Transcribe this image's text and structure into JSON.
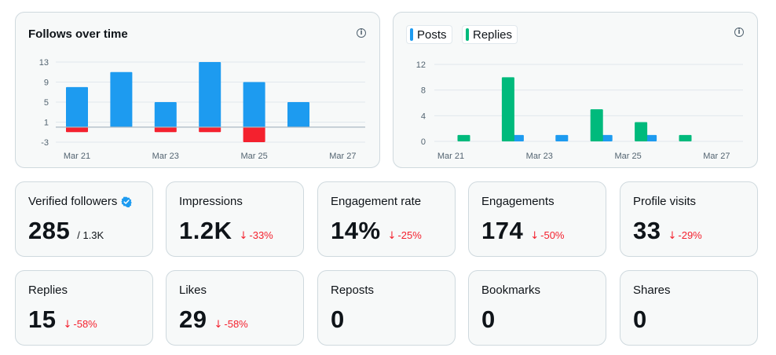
{
  "colors": {
    "posts": "#1d9bf0",
    "replies": "#00ba7c",
    "follows": "#1d9bf0",
    "unfollows": "#f4212e",
    "negative": "#f4212e",
    "gridline": "#e1e8ed",
    "baseline": "#aab8c2",
    "axis_text": "#536471"
  },
  "follows_chart": {
    "title": "Follows over time",
    "info_icon": "info-icon",
    "chart_data": {
      "type": "bar",
      "title": "Follows over time",
      "y_ticks": [
        "13",
        "9",
        "5",
        "1",
        "-3"
      ],
      "ylim": [
        -3,
        13
      ],
      "x_ticks": [
        "Mar 21",
        "Mar 23",
        "Mar 25",
        "Mar 27"
      ],
      "categories": [
        "Mar 21",
        "Mar 22",
        "Mar 23",
        "Mar 24",
        "Mar 25",
        "Mar 26",
        "Mar 27"
      ],
      "series": [
        {
          "name": "Follows",
          "values": [
            8,
            11,
            5,
            13,
            9,
            5,
            0
          ]
        },
        {
          "name": "Unfollows",
          "values": [
            -1,
            0,
            -1,
            -1,
            -3,
            0,
            0
          ]
        }
      ]
    }
  },
  "posts_chart": {
    "legend": [
      {
        "label": "Posts",
        "color": "#1d9bf0"
      },
      {
        "label": "Replies",
        "color": "#00ba7c"
      }
    ],
    "info_icon": "info-icon",
    "chart_data": {
      "type": "bar",
      "y_ticks": [
        "12",
        "8",
        "4",
        "0"
      ],
      "ylim": [
        0,
        12
      ],
      "x_ticks": [
        "Mar 21",
        "Mar 23",
        "Mar 25",
        "Mar 27"
      ],
      "categories": [
        "Mar 21",
        "Mar 22",
        "Mar 23",
        "Mar 24",
        "Mar 25",
        "Mar 26",
        "Mar 27"
      ],
      "series": [
        {
          "name": "Posts",
          "values": [
            0,
            1,
            1,
            1,
            1,
            0,
            0
          ]
        },
        {
          "name": "Replies",
          "values": [
            1,
            10,
            0,
            5,
            3,
            1,
            0
          ]
        }
      ]
    }
  },
  "cards": [
    {
      "label": "Verified followers",
      "value": "285",
      "sub": "/ 1.3K",
      "delta": "",
      "verified": true
    },
    {
      "label": "Impressions",
      "value": "1.2K",
      "sub": "",
      "delta": "-33%",
      "verified": false
    },
    {
      "label": "Engagement rate",
      "value": "14%",
      "sub": "",
      "delta": "-25%",
      "verified": false
    },
    {
      "label": "Engagements",
      "value": "174",
      "sub": "",
      "delta": "-50%",
      "verified": false
    },
    {
      "label": "Profile visits",
      "value": "33",
      "sub": "",
      "delta": "-29%",
      "verified": false
    },
    {
      "label": "Replies",
      "value": "15",
      "sub": "",
      "delta": "-58%",
      "verified": false
    },
    {
      "label": "Likes",
      "value": "29",
      "sub": "",
      "delta": "-58%",
      "verified": false
    },
    {
      "label": "Reposts",
      "value": "0",
      "sub": "",
      "delta": "",
      "verified": false
    },
    {
      "label": "Bookmarks",
      "value": "0",
      "sub": "",
      "delta": "",
      "verified": false
    },
    {
      "label": "Shares",
      "value": "0",
      "sub": "",
      "delta": "",
      "verified": false
    }
  ]
}
